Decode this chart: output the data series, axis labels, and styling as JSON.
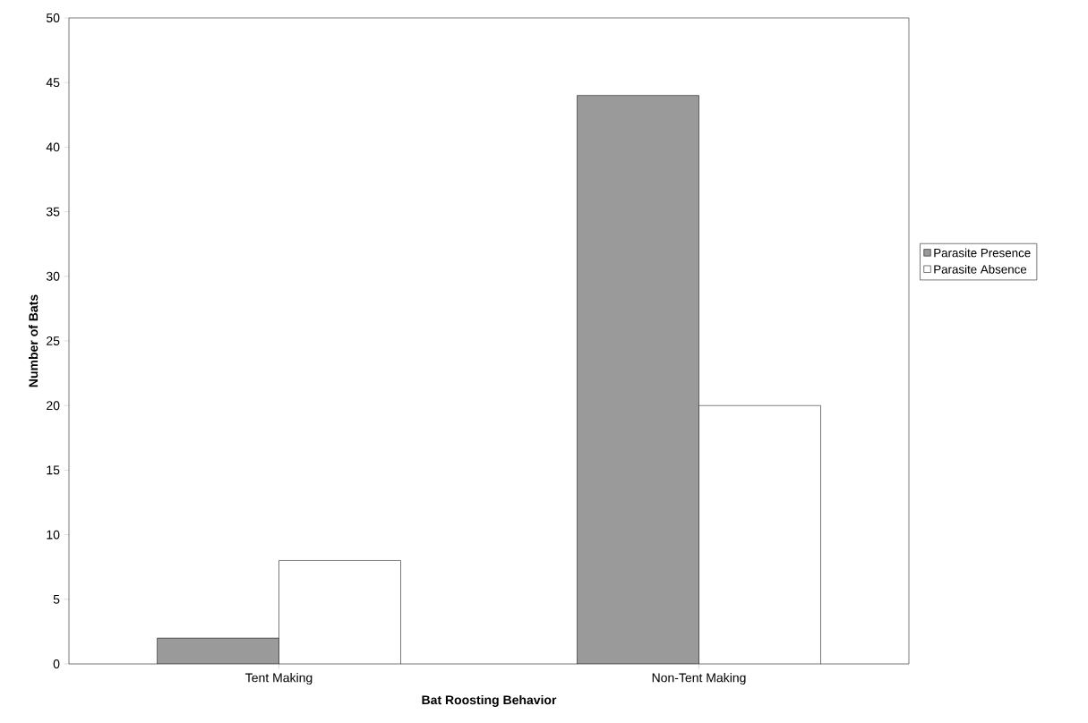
{
  "chart_data": {
    "type": "bar",
    "xlabel": "Bat Roosting Behavior",
    "ylabel": "Number of Bats",
    "categories": [
      "Tent Making",
      "Non-Tent Making"
    ],
    "series": [
      {
        "name": "Parasite Presence",
        "color": "#9a9a9a",
        "values": [
          2,
          44
        ]
      },
      {
        "name": "Parasite Absence",
        "color": "#ffffff",
        "values": [
          8,
          20
        ]
      }
    ],
    "ylim": [
      0,
      50
    ],
    "yticks": [
      0,
      5,
      10,
      15,
      20,
      25,
      30,
      35,
      40,
      45,
      50
    ],
    "legend": "right"
  }
}
